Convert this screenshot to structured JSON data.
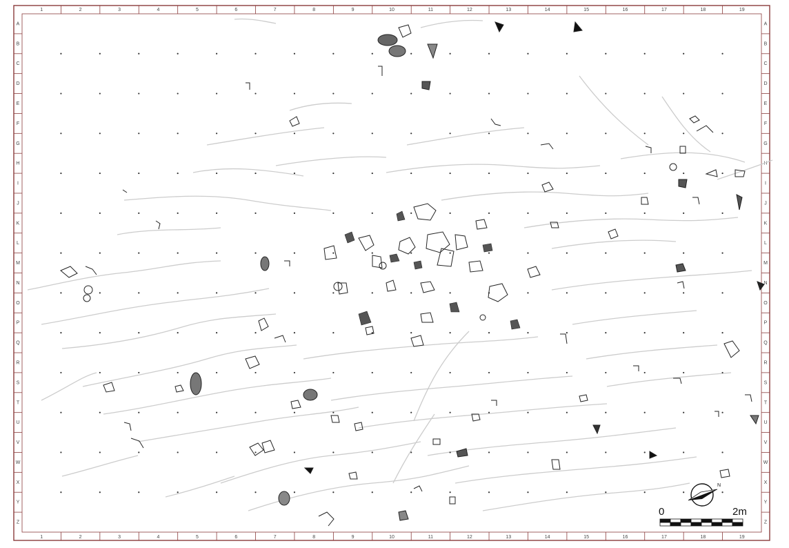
{
  "title": "",
  "grid": {
    "top_labels": [
      "1",
      "2",
      "3",
      "4",
      "5",
      "6",
      "7",
      "8",
      "9",
      "10",
      "11",
      "12",
      "13",
      "14",
      "15",
      "16",
      "17",
      "18",
      "19"
    ],
    "bottom_labels": [
      "1",
      "2",
      "3",
      "4",
      "5",
      "6",
      "7",
      "8",
      "9",
      "10",
      "11",
      "12",
      "13",
      "14",
      "15",
      "16",
      "17",
      "18",
      "19"
    ],
    "left_labels": [
      "A",
      "B",
      "C",
      "D",
      "E",
      "F",
      "G",
      "H",
      "I",
      "J",
      "K",
      "L",
      "M",
      "N",
      "O",
      "P",
      "Q",
      "R",
      "S",
      "T",
      "U",
      "V",
      "W",
      "X",
      "Y",
      "Z"
    ],
    "right_labels": [
      "A",
      "B",
      "C",
      "D",
      "E",
      "F",
      "G",
      "H",
      "I",
      "J",
      "K",
      "L",
      "M",
      "N",
      "O",
      "P",
      "Q",
      "R",
      "S",
      "T",
      "U",
      "V",
      "W",
      "X",
      "Y",
      "Z"
    ]
  },
  "scale_bar": {
    "start_label": "0",
    "end_label": "2m",
    "segments": 8
  },
  "north_arrow": {
    "icon": "north-arrow-icon",
    "letter": "N"
  },
  "colors": {
    "frame": "#8a3b3b",
    "grid_point": "#333333",
    "contour": "#c9c9c9",
    "find_outline": "#222222",
    "find_fill": "#555555"
  }
}
